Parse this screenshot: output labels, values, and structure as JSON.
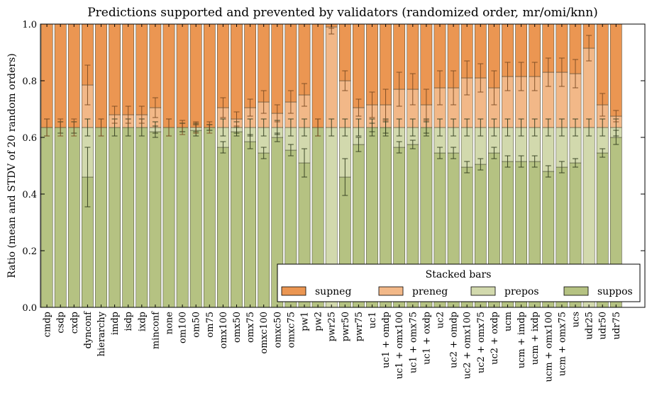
{
  "chart_data": {
    "type": "bar",
    "stacked": true,
    "title": "Predictions supported and prevented by validators (randomized order, mr/omi/knn)",
    "xlabel": "",
    "ylabel": "Ratio (mean and STDV of 20 random orders)",
    "ylim": [
      0,
      1.0
    ],
    "yticks": [
      "0.0",
      "0.2",
      "0.4",
      "0.6",
      "0.8",
      "1.0"
    ],
    "grid": false,
    "legend": {
      "title": "Stacked bars",
      "placement": "lower-right"
    },
    "categories": [
      "cmdp",
      "csdp",
      "cxdp",
      "dynconf",
      "hierarchy",
      "imdp",
      "isdp",
      "ixdp",
      "minconf",
      "none",
      "om100",
      "om50",
      "om75",
      "omx100",
      "omx50",
      "omx75",
      "omxc100",
      "omxc50",
      "omxc75",
      "pw1",
      "pw2",
      "pwr25",
      "pwr50",
      "pwr75",
      "uc1",
      "uc1 + omdp",
      "uc1 + omx100",
      "uc1 + omx75",
      "uc1 + oxdp",
      "uc2",
      "uc2 + omdp",
      "uc2 + omx100",
      "uc2 + omx75",
      "uc2 + oxdp",
      "ucm",
      "ucm + imdp",
      "ucm + ixdp",
      "ucm + omx100",
      "ucm + omx75",
      "ucs",
      "udr25",
      "udr50",
      "udr75"
    ],
    "series": [
      {
        "name": "suppos",
        "color": "#b5c282",
        "values": [
          0.635,
          0.635,
          0.635,
          0.46,
          0.635,
          0.635,
          0.635,
          0.635,
          0.62,
          0.635,
          0.635,
          0.625,
          0.635,
          0.565,
          0.62,
          0.585,
          0.545,
          0.6,
          0.555,
          0.51,
          0.635,
          0.0,
          0.46,
          0.575,
          0.635,
          0.635,
          0.565,
          0.575,
          0.635,
          0.545,
          0.545,
          0.495,
          0.505,
          0.545,
          0.515,
          0.515,
          0.515,
          0.48,
          0.495,
          0.51,
          0.0,
          0.545,
          0.6
        ],
        "stdv": [
          0.03,
          0.02,
          0.02,
          0.105,
          0.03,
          0.03,
          0.03,
          0.03,
          0.02,
          0.03,
          0.015,
          0.02,
          0.01,
          0.02,
          0.015,
          0.025,
          0.02,
          0.015,
          0.02,
          0.05,
          0.03,
          0.0,
          0.065,
          0.025,
          0.015,
          0.02,
          0.02,
          0.015,
          0.02,
          0.02,
          0.02,
          0.02,
          0.02,
          0.02,
          0.02,
          0.02,
          0.02,
          0.02,
          0.02,
          0.015,
          0.0,
          0.015,
          0.025
        ]
      },
      {
        "name": "prepos",
        "color": "#d2d9ad",
        "values": [
          0.0,
          0.0,
          0.0,
          0.175,
          0.0,
          0.0,
          0.0,
          0.0,
          0.015,
          0.0,
          0.0,
          0.01,
          0.0,
          0.07,
          0.015,
          0.05,
          0.09,
          0.035,
          0.08,
          0.125,
          0.0,
          0.635,
          0.175,
          0.06,
          0.0,
          0.0,
          0.07,
          0.06,
          0.0,
          0.09,
          0.09,
          0.14,
          0.13,
          0.09,
          0.12,
          0.12,
          0.12,
          0.155,
          0.14,
          0.125,
          0.635,
          0.09,
          0.035
        ],
        "stdv": [
          0,
          0,
          0,
          0.03,
          0,
          0,
          0,
          0,
          0.02,
          0,
          0.015,
          0.015,
          0.01,
          0.03,
          0.02,
          0.03,
          0.03,
          0.025,
          0.03,
          0.03,
          0.03,
          0.03,
          0.03,
          0.03,
          0.03,
          0.03,
          0.03,
          0.03,
          0.03,
          0.03,
          0.03,
          0.03,
          0.03,
          0.03,
          0.03,
          0.03,
          0.03,
          0.03,
          0.03,
          0.03,
          0.03,
          0.03,
          0.03
        ]
      },
      {
        "name": "preneg",
        "color": "#f2b888",
        "values": [
          0.0,
          0.0,
          0.0,
          0.15,
          0.0,
          0.045,
          0.045,
          0.045,
          0.07,
          0.0,
          0.0,
          0.0,
          0.0,
          0.07,
          0.03,
          0.07,
          0.09,
          0.05,
          0.09,
          0.115,
          0.0,
          0.355,
          0.165,
          0.07,
          0.08,
          0.08,
          0.135,
          0.135,
          0.08,
          0.14,
          0.14,
          0.175,
          0.175,
          0.14,
          0.18,
          0.18,
          0.18,
          0.195,
          0.195,
          0.19,
          0.28,
          0.08,
          0.04
        ],
        "stdv": [
          0.03,
          0.03,
          0.03,
          0.07,
          0.03,
          0.03,
          0.03,
          0.03,
          0.035,
          0.03,
          0.025,
          0.02,
          0.02,
          0.035,
          0.025,
          0.03,
          0.04,
          0.03,
          0.04,
          0.04,
          0.03,
          0.025,
          0.035,
          0.03,
          0.045,
          0.055,
          0.06,
          0.055,
          0.055,
          0.06,
          0.06,
          0.06,
          0.05,
          0.06,
          0.05,
          0.05,
          0.05,
          0.05,
          0.05,
          0.05,
          0.045,
          0.04,
          0.02
        ]
      },
      {
        "name": "supneg",
        "color": "#eb9652",
        "values": [
          0.365,
          0.365,
          0.365,
          0.215,
          0.365,
          0.32,
          0.32,
          0.32,
          0.295,
          0.365,
          0.365,
          0.365,
          0.365,
          0.295,
          0.335,
          0.295,
          0.275,
          0.315,
          0.275,
          0.25,
          0.365,
          0.01,
          0.2,
          0.295,
          0.285,
          0.285,
          0.23,
          0.23,
          0.285,
          0.225,
          0.225,
          0.19,
          0.19,
          0.225,
          0.185,
          0.185,
          0.185,
          0.17,
          0.17,
          0.175,
          0.085,
          0.285,
          0.325
        ],
        "stdv": [
          0,
          0,
          0,
          0,
          0,
          0,
          0,
          0,
          0,
          0,
          0,
          0,
          0,
          0,
          0,
          0,
          0,
          0,
          0,
          0,
          0,
          0.015,
          0,
          0,
          0,
          0,
          0,
          0,
          0,
          0,
          0,
          0,
          0,
          0,
          0,
          0,
          0,
          0,
          0,
          0,
          0,
          0,
          0
        ]
      }
    ]
  }
}
